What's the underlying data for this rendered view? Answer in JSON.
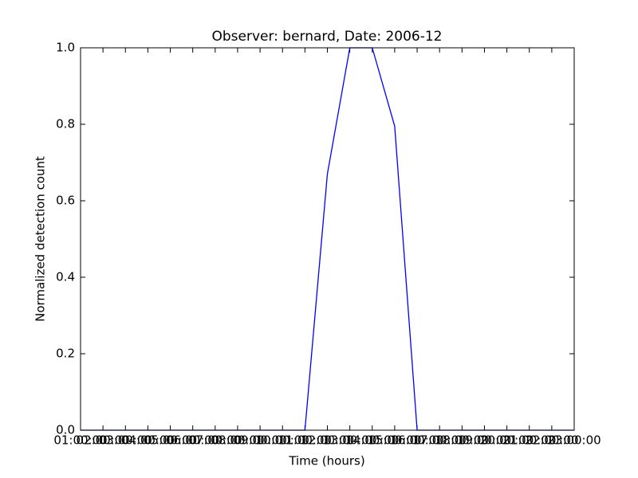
{
  "chart_data": {
    "type": "line",
    "title": "Observer: bernard, Date: 2006-12",
    "xlabel": "Time (hours)",
    "ylabel": "Normalized detection count",
    "categories": [
      "01:00:00",
      "02:00:00",
      "03:00:00",
      "04:00:00",
      "05:00:00",
      "06:00:00",
      "07:00:00",
      "08:00:00",
      "09:00:00",
      "10:00:00",
      "11:00:00",
      "12:00:00",
      "13:00:00",
      "14:00:00",
      "15:00:00",
      "16:00:00",
      "17:00:00",
      "18:00:00",
      "19:00:00",
      "20:00:00",
      "21:00:00",
      "22:00:00",
      "23:00:00"
    ],
    "values": [
      0,
      0,
      0,
      0,
      0,
      0,
      0,
      0,
      0,
      0,
      0,
      0.67,
      1,
      1,
      0.795,
      0,
      0,
      0,
      0,
      0,
      0,
      0,
      0
    ],
    "color": "#0000ff",
    "ylim": [
      0,
      1
    ],
    "yticks": [
      {
        "value": 0,
        "label": "0.0"
      },
      0.2,
      0.4,
      0.6,
      0.8,
      {
        "value": 1,
        "label": "1.0"
      }
    ]
  }
}
